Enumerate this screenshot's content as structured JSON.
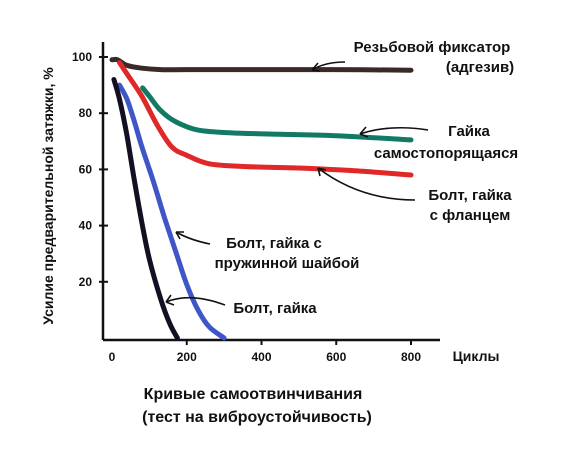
{
  "chart_data": {
    "type": "line",
    "title": "Кривые самоотвинчивания",
    "subtitle": "(тест на виброустойчивость)",
    "xlabel": "Циклы",
    "ylabel": "Усилие предварительной затяжки, %",
    "xlim": [
      0,
      800
    ],
    "ylim": [
      0,
      100
    ],
    "x_ticks": [
      "0",
      "200",
      "400",
      "600",
      "800"
    ],
    "y_ticks": [
      "100",
      "80",
      "60",
      "40",
      "20"
    ],
    "grid": false,
    "series": [
      {
        "name": "Резьбовой фиксатор (адгезив)",
        "color": "#3a2a26",
        "points": [
          [
            0,
            99
          ],
          [
            15,
            99
          ],
          [
            40,
            97
          ],
          [
            80,
            96
          ],
          [
            130,
            95.5
          ],
          [
            200,
            95.5
          ],
          [
            400,
            95.5
          ],
          [
            600,
            95.5
          ],
          [
            800,
            95.3
          ]
        ]
      },
      {
        "name": "Гайка самостопорящаяся",
        "color": "#127a64",
        "points": [
          [
            82,
            89
          ],
          [
            100,
            86
          ],
          [
            130,
            81
          ],
          [
            170,
            77
          ],
          [
            230,
            74
          ],
          [
            320,
            73
          ],
          [
            450,
            72.5
          ],
          [
            600,
            72
          ],
          [
            800,
            70.5
          ]
        ]
      },
      {
        "name": "Болт, гайка с фланцем",
        "color": "#e02828",
        "points": [
          [
            20,
            98
          ],
          [
            40,
            94
          ],
          [
            80,
            86
          ],
          [
            120,
            76
          ],
          [
            160,
            68
          ],
          [
            200,
            65
          ],
          [
            260,
            62
          ],
          [
            360,
            61
          ],
          [
            500,
            60.5
          ],
          [
            650,
            59.5
          ],
          [
            800,
            58
          ]
        ]
      },
      {
        "name": "Болт, гайка с пружинной шайбой",
        "color": "#3f56c7",
        "points": [
          [
            20,
            90
          ],
          [
            40,
            85
          ],
          [
            60,
            77
          ],
          [
            80,
            68
          ],
          [
            110,
            56
          ],
          [
            140,
            43
          ],
          [
            170,
            31
          ],
          [
            200,
            19
          ],
          [
            230,
            10
          ],
          [
            260,
            4
          ],
          [
            300,
            0
          ]
        ]
      },
      {
        "name": "Болт, гайка",
        "color": "#140f22",
        "points": [
          [
            5,
            92
          ],
          [
            20,
            85
          ],
          [
            40,
            72
          ],
          [
            60,
            56
          ],
          [
            80,
            41
          ],
          [
            100,
            28
          ],
          [
            130,
            14
          ],
          [
            155,
            5
          ],
          [
            175,
            0
          ]
        ]
      }
    ]
  },
  "labels": {
    "adhesive_line1": "Резьбовой  фиксатор",
    "adhesive_line2": "(адгезив)",
    "locknut_line1": "Гайка",
    "locknut_line2": "самостопорящаяся",
    "flange_line1": "Болт, гайка",
    "flange_line2": "с фланцем",
    "spring_line1": "Болт, гайка с",
    "spring_line2": "пружинной шайбой",
    "plain_line1": "Болт, гайка"
  }
}
